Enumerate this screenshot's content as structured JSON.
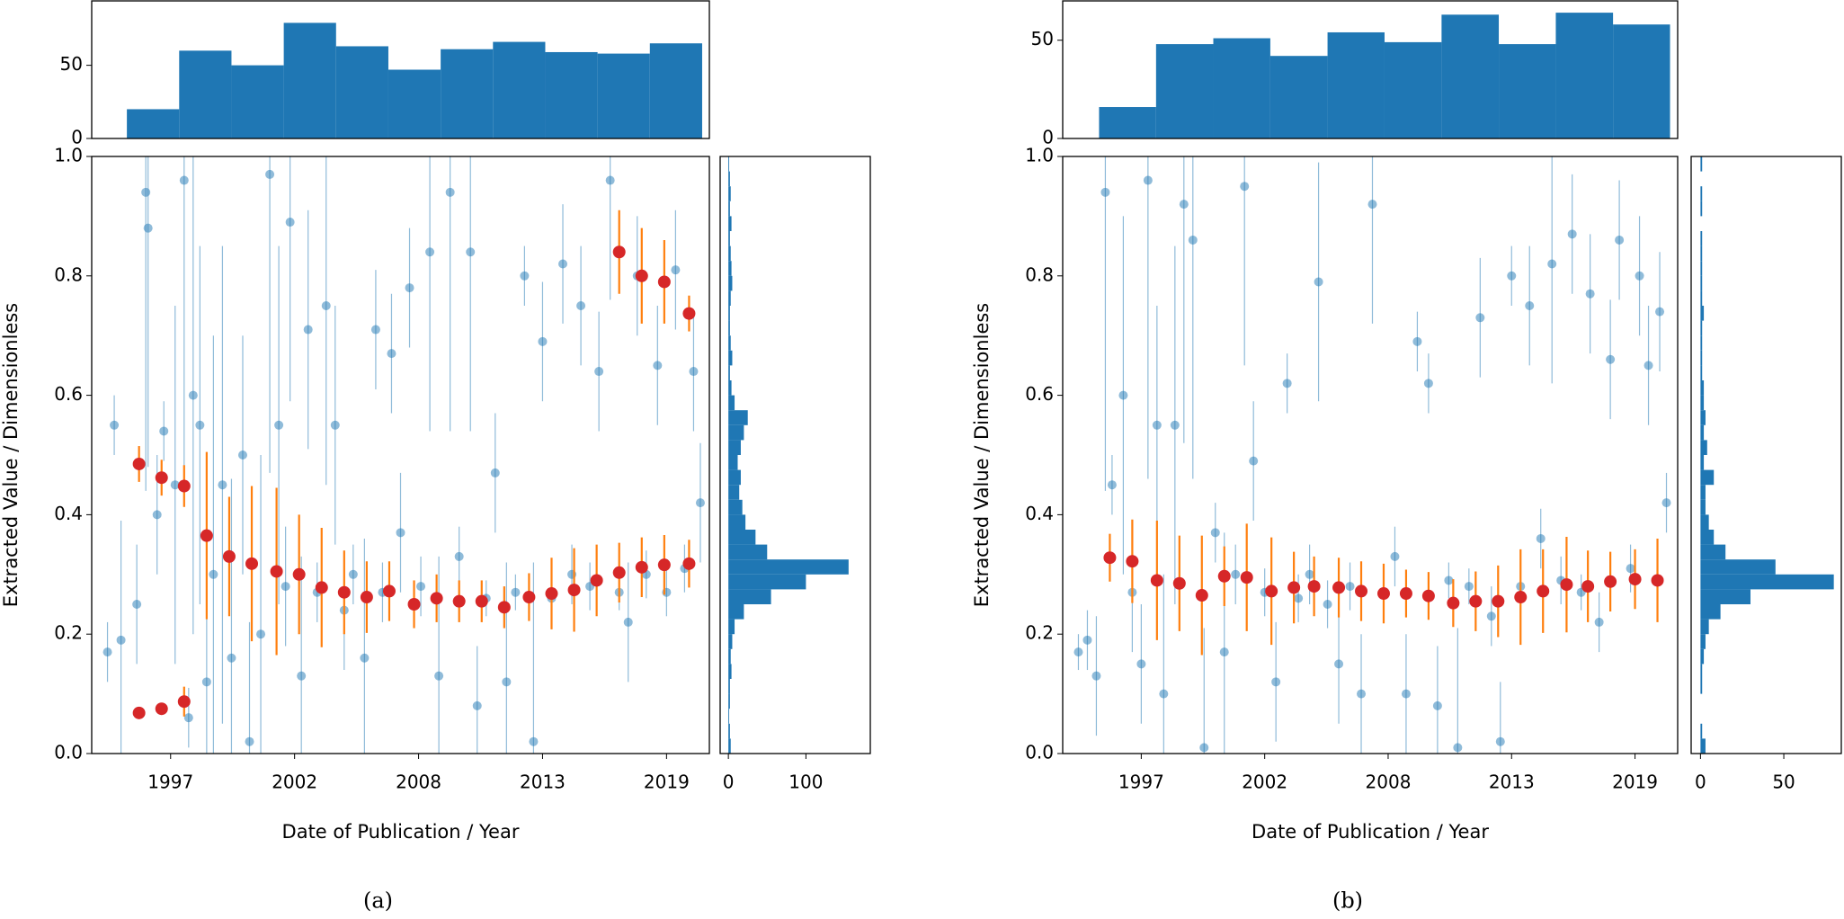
{
  "chart_data": [
    {
      "type": "histogram",
      "orientation": "vertical",
      "color": "#1f77b4",
      "bins": [
        1995.06,
        1997.38,
        1999.7,
        2002.02,
        2004.34,
        2006.66,
        2008.98,
        2011.3,
        2013.62,
        2015.94,
        2018.26,
        2020.58
      ],
      "values": [
        20,
        60,
        50,
        79,
        63,
        47,
        61,
        66,
        59,
        58,
        65
      ],
      "xlim": [
        1993.5,
        2020.9
      ],
      "ylim": [
        0,
        94
      ],
      "yticks": [
        0,
        50
      ]
    },
    {
      "type": "scatter",
      "xlabel": "Date of Publication / Year",
      "ylabel": "Extracted Value / Dimensionless",
      "caption": "(a)",
      "xlim": [
        1993.5,
        2020.9
      ],
      "ylim": [
        0,
        1
      ],
      "xticks": [
        {
          "value": 1997,
          "label": "1997"
        },
        {
          "value": 2002.5,
          "label": "2002"
        },
        {
          "value": 2008,
          "label": "2008"
        },
        {
          "value": 2013.5,
          "label": "2013"
        },
        {
          "value": 2019,
          "label": "2019"
        }
      ],
      "yticks": [
        {
          "value": 0,
          "label": "0.0"
        },
        0.2,
        0.4,
        0.6,
        0.8,
        {
          "value": 1,
          "label": "1.0"
        }
      ],
      "series": [
        {
          "color": "#1f77b4",
          "error_color": "#1f77b4",
          "alpha": 0.5,
          "size": 5,
          "x": [
            1994.2,
            1994.5,
            1994.8,
            1995.5,
            1995.9,
            1996.0,
            1996.4,
            1996.7,
            1997.2,
            1997.6,
            1997.8,
            1998.0,
            1998.3,
            1998.6,
            1998.9,
            1999.3,
            1999.7,
            2000.2,
            2000.5,
            2001.0,
            2001.4,
            2001.8,
            2002.1,
            2002.3,
            2002.8,
            2003.1,
            2003.5,
            2003.9,
            2004.3,
            2004.7,
            2005.1,
            2005.6,
            2006.1,
            2006.4,
            2006.8,
            2007.2,
            2007.6,
            2008.1,
            2008.5,
            2008.9,
            2009.4,
            2009.8,
            2010.3,
            2010.6,
            2011.0,
            2011.4,
            2011.9,
            2012.3,
            2012.7,
            2013.1,
            2013.5,
            2013.9,
            2014.4,
            2014.8,
            2015.2,
            2015.6,
            2016.0,
            2016.5,
            2016.9,
            2017.3,
            2017.7,
            2018.1,
            2018.6,
            2019.0,
            2019.4,
            2019.8,
            2020.2,
            2020.5
          ],
          "values": [
            0.17,
            0.55,
            0.19,
            0.25,
            0.94,
            0.88,
            0.4,
            0.54,
            0.45,
            0.96,
            0.06,
            0.6,
            0.55,
            0.12,
            0.3,
            0.45,
            0.16,
            0.5,
            0.02,
            0.2,
            0.97,
            0.55,
            0.28,
            0.89,
            0.13,
            0.71,
            0.27,
            0.75,
            0.55,
            0.24,
            0.3,
            0.16,
            0.71,
            0.27,
            0.67,
            0.37,
            0.78,
            0.28,
            0.84,
            0.13,
            0.94,
            0.33,
            0.84,
            0.08,
            0.26,
            0.47,
            0.12,
            0.27,
            0.8,
            0.02,
            0.69,
            0.26,
            0.82,
            0.3,
            0.75,
            0.28,
            0.64,
            0.96,
            0.27,
            0.22,
            0.8,
            0.3,
            0.65,
            0.27,
            0.81,
            0.31,
            0.64,
            0.42
          ],
          "errors": [
            0.05,
            0.05,
            0.2,
            0.1,
            0.5,
            0.4,
            0.1,
            0.05,
            0.3,
            0.5,
            0.05,
            0.4,
            0.3,
            0.3,
            0.4,
            0.4,
            0.3,
            0.2,
            0.2,
            0.3,
            0.5,
            0.3,
            0.1,
            0.3,
            0.2,
            0.2,
            0.05,
            0.3,
            0.2,
            0.1,
            0.05,
            0.2,
            0.1,
            0.05,
            0.1,
            0.1,
            0.1,
            0.05,
            0.3,
            0.2,
            0.4,
            0.05,
            0.3,
            0.1,
            0.03,
            0.1,
            0.2,
            0.03,
            0.05,
            0.3,
            0.1,
            0.04,
            0.1,
            0.05,
            0.1,
            0.04,
            0.1,
            0.2,
            0.03,
            0.1,
            0.1,
            0.04,
            0.1,
            0.04,
            0.1,
            0.04,
            0.1,
            0.1
          ]
        },
        {
          "color": "#d62728",
          "error_color": "#ff7f0e",
          "alpha": 1,
          "size": 7,
          "x": [
            1995.6,
            1996.6,
            1997.6,
            1998.6,
            1999.6,
            2000.6,
            2001.7,
            2002.7,
            2003.7,
            2004.7,
            2005.7,
            2006.7,
            2007.8,
            2008.8,
            2009.8,
            2010.8,
            2011.8,
            2012.9,
            2013.9,
            2014.9,
            2015.9,
            2016.9,
            2017.9,
            2018.9,
            2020.0,
            1995.6,
            1996.6,
            1997.6,
            2016.9,
            2017.9,
            2018.9,
            2020.0
          ],
          "values": [
            0.485,
            0.462,
            0.448,
            0.365,
            0.33,
            0.318,
            0.305,
            0.3,
            0.278,
            0.27,
            0.262,
            0.272,
            0.25,
            0.26,
            0.255,
            0.255,
            0.245,
            0.262,
            0.268,
            0.274,
            0.29,
            0.303,
            0.312,
            0.316,
            0.318,
            0.068,
            0.075,
            0.087,
            0.84,
            0.8,
            0.79,
            0.737
          ],
          "errors": [
            0.03,
            0.03,
            0.035,
            0.14,
            0.1,
            0.13,
            0.14,
            0.1,
            0.1,
            0.07,
            0.06,
            0.05,
            0.04,
            0.04,
            0.035,
            0.035,
            0.035,
            0.04,
            0.06,
            0.07,
            0.06,
            0.05,
            0.05,
            0.05,
            0.04,
            0.01,
            0.01,
            0.025,
            0.07,
            0.08,
            0.07,
            0.03
          ]
        }
      ]
    },
    {
      "type": "histogram",
      "orientation": "horizontal",
      "color": "#1f77b4",
      "bins": [
        0,
        0.025,
        0.05,
        0.075,
        0.1,
        0.125,
        0.15,
        0.175,
        0.2,
        0.225,
        0.25,
        0.275,
        0.3,
        0.325,
        0.35,
        0.375,
        0.4,
        0.425,
        0.45,
        0.475,
        0.5,
        0.525,
        0.55,
        0.575,
        0.6,
        0.625,
        0.65,
        0.675,
        0.7,
        0.725,
        0.75,
        0.775,
        0.8,
        0.825,
        0.85,
        0.875,
        0.9,
        0.925,
        0.95,
        0.975,
        1
      ],
      "values": [
        3,
        2,
        1,
        2,
        2,
        4,
        3,
        5,
        8,
        20,
        55,
        100,
        155,
        50,
        35,
        22,
        18,
        14,
        16,
        12,
        16,
        20,
        25,
        8,
        4,
        2,
        5,
        3,
        2,
        2,
        3,
        5,
        4,
        3,
        2,
        4,
        2,
        3,
        2,
        1
      ],
      "ylim": [
        0,
        1
      ],
      "xlim": [
        -10.6,
        183
      ],
      "xticks": [
        0,
        100
      ]
    },
    {
      "type": "histogram",
      "orientation": "vertical",
      "color": "#1f77b4",
      "bins": [
        1995.12,
        1997.66,
        2000.21,
        2002.75,
        2005.3,
        2007.84,
        2010.38,
        2012.93,
        2015.47,
        2018.02,
        2020.56
      ],
      "values": [
        16,
        48,
        51,
        42,
        54,
        49,
        63,
        48,
        64,
        58
      ],
      "xlim": [
        1993.5,
        2020.9
      ],
      "ylim": [
        0,
        70
      ],
      "yticks": [
        0,
        50
      ]
    },
    {
      "type": "scatter",
      "xlabel": "Date of Publication / Year",
      "ylabel": "Extracted Value / Dimensionless",
      "caption": "(b)",
      "xlim": [
        1993.5,
        2020.9
      ],
      "ylim": [
        0,
        1
      ],
      "xticks": [
        {
          "value": 1997,
          "label": "1997"
        },
        {
          "value": 2002.5,
          "label": "2002"
        },
        {
          "value": 2008,
          "label": "2008"
        },
        {
          "value": 2013.5,
          "label": "2013"
        },
        {
          "value": 2019,
          "label": "2019"
        }
      ],
      "yticks": [
        {
          "value": 0,
          "label": "0.0"
        },
        0.2,
        0.4,
        0.6,
        0.8,
        {
          "value": 1,
          "label": "1.0"
        }
      ],
      "series": [
        {
          "color": "#1f77b4",
          "error_color": "#1f77b4",
          "alpha": 0.5,
          "size": 5,
          "x": [
            1994.2,
            1994.6,
            1995.0,
            1995.4,
            1995.7,
            1996.2,
            1996.6,
            1997.0,
            1997.3,
            1997.7,
            1998.0,
            1998.5,
            1998.9,
            1999.3,
            1999.8,
            2000.3,
            2000.7,
            2001.2,
            2001.6,
            2002.0,
            2002.5,
            2003.0,
            2003.5,
            2004.0,
            2004.5,
            2004.9,
            2005.3,
            2005.8,
            2006.3,
            2006.8,
            2007.3,
            2007.8,
            2008.3,
            2008.8,
            2009.3,
            2009.8,
            2010.2,
            2010.7,
            2011.1,
            2011.6,
            2012.1,
            2012.6,
            2013.0,
            2013.5,
            2013.9,
            2014.3,
            2014.8,
            2015.3,
            2015.7,
            2016.2,
            2016.6,
            2017.0,
            2017.4,
            2017.9,
            2018.3,
            2018.8,
            2019.2,
            2019.6,
            2020.1,
            2020.4
          ],
          "values": [
            0.17,
            0.19,
            0.13,
            0.94,
            0.45,
            0.6,
            0.27,
            0.15,
            0.96,
            0.55,
            0.1,
            0.55,
            0.92,
            0.86,
            0.01,
            0.37,
            0.17,
            0.3,
            0.95,
            0.49,
            0.27,
            0.12,
            0.62,
            0.26,
            0.3,
            0.79,
            0.25,
            0.15,
            0.28,
            0.1,
            0.92,
            0.27,
            0.33,
            0.1,
            0.69,
            0.62,
            0.08,
            0.29,
            0.01,
            0.28,
            0.73,
            0.23,
            0.02,
            0.8,
            0.28,
            0.75,
            0.36,
            0.82,
            0.29,
            0.87,
            0.27,
            0.77,
            0.22,
            0.66,
            0.86,
            0.31,
            0.8,
            0.65,
            0.74,
            0.42
          ],
          "errors": [
            0.03,
            0.05,
            0.1,
            0.5,
            0.05,
            0.3,
            0.1,
            0.1,
            0.5,
            0.2,
            0.2,
            0.3,
            0.4,
            0.4,
            0.2,
            0.05,
            0.2,
            0.05,
            0.3,
            0.1,
            0.04,
            0.1,
            0.05,
            0.04,
            0.05,
            0.2,
            0.04,
            0.1,
            0.04,
            0.1,
            0.2,
            0.03,
            0.05,
            0.1,
            0.05,
            0.05,
            0.1,
            0.03,
            0.2,
            0.03,
            0.1,
            0.05,
            0.1,
            0.05,
            0.03,
            0.1,
            0.05,
            0.2,
            0.04,
            0.1,
            0.03,
            0.1,
            0.05,
            0.1,
            0.1,
            0.04,
            0.1,
            0.1,
            0.1,
            0.05
          ]
        },
        {
          "color": "#d62728",
          "error_color": "#ff7f0e",
          "alpha": 1,
          "size": 7,
          "x": [
            1995.6,
            1996.6,
            1997.7,
            1998.7,
            1999.7,
            2000.7,
            2001.7,
            2002.8,
            2003.8,
            2004.7,
            2005.8,
            2006.8,
            2007.8,
            2008.8,
            2009.8,
            2010.9,
            2011.9,
            2012.9,
            2013.9,
            2014.9,
            2015.95,
            2016.9,
            2017.9,
            2019.0,
            2020.0
          ],
          "values": [
            0.328,
            0.322,
            0.29,
            0.285,
            0.265,
            0.297,
            0.295,
            0.272,
            0.278,
            0.28,
            0.278,
            0.272,
            0.268,
            0.268,
            0.264,
            0.252,
            0.255,
            0.255,
            0.262,
            0.272,
            0.283,
            0.28,
            0.288,
            0.292,
            0.29
          ],
          "errors": [
            0.04,
            0.07,
            0.1,
            0.08,
            0.1,
            0.05,
            0.09,
            0.09,
            0.06,
            0.05,
            0.05,
            0.05,
            0.05,
            0.04,
            0.04,
            0.04,
            0.05,
            0.06,
            0.08,
            0.07,
            0.08,
            0.06,
            0.05,
            0.05,
            0.07
          ]
        }
      ]
    },
    {
      "type": "histogram",
      "orientation": "horizontal",
      "color": "#1f77b4",
      "bins": [
        0,
        0.025,
        0.05,
        0.075,
        0.1,
        0.125,
        0.15,
        0.175,
        0.2,
        0.225,
        0.25,
        0.275,
        0.3,
        0.325,
        0.35,
        0.375,
        0.4,
        0.425,
        0.45,
        0.475,
        0.5,
        0.525,
        0.55,
        0.575,
        0.6,
        0.625,
        0.65,
        0.675,
        0.7,
        0.725,
        0.75,
        0.775,
        0.8,
        0.825,
        0.85,
        0.875,
        0.9,
        0.925,
        0.95,
        0.975,
        1
      ],
      "values": [
        3,
        1,
        0,
        0,
        1,
        1,
        2,
        3,
        5,
        12,
        30,
        80,
        45,
        15,
        8,
        5,
        3,
        3,
        8,
        2,
        4,
        2,
        3,
        2,
        2,
        1,
        1,
        1,
        1,
        2,
        1,
        1,
        1,
        1,
        1,
        0,
        1,
        1,
        0,
        1
      ],
      "ylim": [
        0,
        1
      ],
      "xlim": [
        -5.6,
        84.5
      ],
      "xticks": [
        0,
        50
      ]
    }
  ]
}
